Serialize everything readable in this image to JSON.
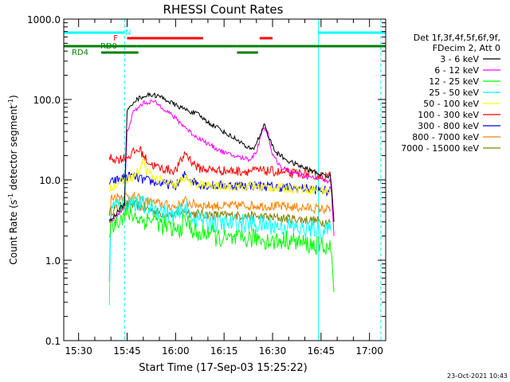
{
  "chart_data": {
    "type": "line",
    "title": "RHESSI Count Rates",
    "xlabel": "Start Time (17-Sep-03 15:25:22)",
    "ylabel_main": "Count Rate (s",
    "ylabel_sup1": "-1",
    "ylabel_mid": " detector segment",
    "ylabel_sup2": "-1",
    "ylabel_end": ")",
    "y_scale": "log",
    "ylim": [
      0.1,
      1000
    ],
    "xlim_minutes": [
      25.4,
      125
    ],
    "y_ticks": [
      {
        "value": 1000,
        "label": "1000.0"
      },
      {
        "value": 100,
        "label": "100.0"
      },
      {
        "value": 10,
        "label": "10.0"
      },
      {
        "value": 1,
        "label": "1.0"
      },
      {
        "value": 0.1,
        "label": "0.1"
      }
    ],
    "x_ticks": [
      {
        "value": 30,
        "label": "15:30"
      },
      {
        "value": 45,
        "label": "15:45"
      },
      {
        "value": 60,
        "label": "16:00"
      },
      {
        "value": 75,
        "label": "16:15"
      },
      {
        "value": 90,
        "label": "16:30"
      },
      {
        "value": 105,
        "label": "16:45"
      },
      {
        "value": 120,
        "label": "17:00"
      }
    ],
    "legend_header": [
      "Det 1f,3f,4f,5f,6f,9f,",
      "FDecim 2, Att 0"
    ],
    "legend_position": "right",
    "series": [
      {
        "name": "3 - 6 keV",
        "color": "#000000",
        "points": [
          [
            39.5,
            3
          ],
          [
            41,
            3.5
          ],
          [
            43,
            4.5
          ],
          [
            44.2,
            5
          ],
          [
            45,
            70
          ],
          [
            47,
            95
          ],
          [
            50,
            110
          ],
          [
            53,
            115
          ],
          [
            56,
            105
          ],
          [
            60,
            85
          ],
          [
            63,
            75
          ],
          [
            67,
            65
          ],
          [
            70,
            52
          ],
          [
            73,
            45
          ],
          [
            76,
            37
          ],
          [
            80,
            30
          ],
          [
            82,
            25
          ],
          [
            84,
            24
          ],
          [
            86,
            35
          ],
          [
            87.5,
            50
          ],
          [
            89,
            32
          ],
          [
            91,
            22
          ],
          [
            95,
            17
          ],
          [
            100,
            14
          ],
          [
            104,
            12
          ],
          [
            106,
            11.5
          ],
          [
            108,
            11
          ],
          [
            109,
            3
          ]
        ]
      },
      {
        "name": "6 - 12 keV",
        "color": "#ff00ff",
        "points": [
          [
            39.5,
            3
          ],
          [
            43,
            4
          ],
          [
            44.2,
            5
          ],
          [
            45,
            40
          ],
          [
            47,
            70
          ],
          [
            50,
            90
          ],
          [
            53,
            95
          ],
          [
            56,
            80
          ],
          [
            60,
            58
          ],
          [
            63,
            45
          ],
          [
            66,
            35
          ],
          [
            68,
            32
          ],
          [
            70,
            28
          ],
          [
            73,
            24
          ],
          [
            76,
            21
          ],
          [
            80,
            19
          ],
          [
            83,
            18
          ],
          [
            85,
            22
          ],
          [
            87,
            45
          ],
          [
            88.5,
            40
          ],
          [
            90,
            20
          ],
          [
            93,
            14
          ],
          [
            97,
            12
          ],
          [
            100,
            11
          ],
          [
            103,
            10.5
          ],
          [
            106,
            10
          ],
          [
            108,
            9.5
          ],
          [
            109,
            2
          ]
        ]
      },
      {
        "name": "12 - 25 keV",
        "color": "#00ff00",
        "points": [
          [
            39.5,
            2.5
          ],
          [
            42,
            3.2
          ],
          [
            45,
            3.8
          ],
          [
            47,
            3.6
          ],
          [
            50,
            3.1
          ],
          [
            53,
            3.3
          ],
          [
            56,
            2.7
          ],
          [
            59,
            2.4
          ],
          [
            61,
            2.3
          ],
          [
            63,
            3.2
          ],
          [
            65,
            2.5
          ],
          [
            67,
            2.0
          ],
          [
            70,
            2.3
          ],
          [
            73,
            1.9
          ],
          [
            76,
            1.8
          ],
          [
            80,
            1.8
          ],
          [
            85,
            1.9
          ],
          [
            90,
            1.7
          ],
          [
            95,
            1.8
          ],
          [
            100,
            1.6
          ],
          [
            104,
            1.5
          ],
          [
            106,
            1.5
          ],
          [
            108,
            1.4
          ],
          [
            109,
            0.4
          ]
        ]
      },
      {
        "name": "25 - 50 keV",
        "color": "#00ffff",
        "points": [
          [
            39.5,
            0.25
          ],
          [
            40,
            4.5
          ],
          [
            43,
            5
          ],
          [
            47,
            5.5
          ],
          [
            50,
            4.8
          ],
          [
            55,
            4.2
          ],
          [
            60,
            3.4
          ],
          [
            63,
            4.5
          ],
          [
            65,
            3.5
          ],
          [
            70,
            3.0
          ],
          [
            75,
            2.8
          ],
          [
            80,
            2.9
          ],
          [
            85,
            2.8
          ],
          [
            90,
            2.7
          ],
          [
            95,
            2.6
          ],
          [
            100,
            2.4
          ],
          [
            104,
            2.5
          ],
          [
            106,
            2.3
          ],
          [
            108,
            2.3
          ]
        ]
      },
      {
        "name": "50 - 100 keV",
        "color": "#ffff00",
        "points": [
          [
            39.5,
            8
          ],
          [
            42,
            9
          ],
          [
            45,
            10
          ],
          [
            47,
            11
          ],
          [
            49,
            13
          ],
          [
            50,
            18
          ],
          [
            51,
            13
          ],
          [
            53,
            11
          ],
          [
            56,
            9.5
          ],
          [
            60,
            8.5
          ],
          [
            63,
            11
          ],
          [
            65,
            9
          ],
          [
            70,
            8.5
          ],
          [
            75,
            8.3
          ],
          [
            80,
            8.2
          ],
          [
            85,
            8.2
          ],
          [
            90,
            8
          ],
          [
            95,
            7.8
          ],
          [
            100,
            7.8
          ],
          [
            104,
            7.5
          ],
          [
            106,
            7.3
          ],
          [
            108,
            7.2
          ]
        ]
      },
      {
        "name": "100 - 300 keV",
        "color": "#ff0000",
        "points": [
          [
            39.5,
            19
          ],
          [
            42,
            18
          ],
          [
            45,
            19
          ],
          [
            47,
            22
          ],
          [
            49,
            24
          ],
          [
            50,
            20
          ],
          [
            52,
            16
          ],
          [
            55,
            14
          ],
          [
            60,
            13
          ],
          [
            62,
            18
          ],
          [
            63,
            22
          ],
          [
            64.5,
            18
          ],
          [
            67,
            14
          ],
          [
            70,
            13.5
          ],
          [
            75,
            13
          ],
          [
            80,
            12.8
          ],
          [
            85,
            13
          ],
          [
            90,
            12.8
          ],
          [
            95,
            12
          ],
          [
            100,
            12
          ],
          [
            104,
            11.5
          ],
          [
            106,
            11
          ],
          [
            108,
            11
          ]
        ]
      },
      {
        "name": "300 - 800 keV",
        "color": "#0000ff",
        "points": [
          [
            39.5,
            9
          ],
          [
            42,
            10
          ],
          [
            45,
            11
          ],
          [
            47,
            11
          ],
          [
            50,
            10
          ],
          [
            53,
            9.5
          ],
          [
            56,
            9
          ],
          [
            60,
            8.5
          ],
          [
            62,
            10
          ],
          [
            63,
            12
          ],
          [
            64.5,
            10
          ],
          [
            67,
            9
          ],
          [
            70,
            8.5
          ],
          [
            75,
            8.5
          ],
          [
            80,
            8.5
          ],
          [
            85,
            8.5
          ],
          [
            90,
            8.2
          ],
          [
            95,
            8
          ],
          [
            100,
            7.8
          ],
          [
            104,
            7.5
          ],
          [
            106,
            7.3
          ],
          [
            108,
            7.2
          ]
        ]
      },
      {
        "name": "800 - 7000 keV",
        "color": "#ff8000",
        "points": [
          [
            39.5,
            0.5
          ],
          [
            40,
            6
          ],
          [
            42,
            6.2
          ],
          [
            45,
            6.3
          ],
          [
            48,
            6
          ],
          [
            50,
            5.6
          ],
          [
            53,
            5.2
          ],
          [
            56,
            5
          ],
          [
            60,
            4.6
          ],
          [
            63,
            5.5
          ],
          [
            65,
            5
          ],
          [
            70,
            4.8
          ],
          [
            75,
            4.7
          ],
          [
            80,
            4.8
          ],
          [
            85,
            4.8
          ],
          [
            90,
            4.7
          ],
          [
            95,
            4.6
          ],
          [
            100,
            4.5
          ],
          [
            104,
            4.4
          ],
          [
            106,
            4.3
          ],
          [
            108,
            4.3
          ]
        ]
      },
      {
        "name": "7000 - 15000 keV",
        "color": "#808000",
        "points": [
          [
            39.5,
            4
          ],
          [
            42,
            4.5
          ],
          [
            45,
            5
          ],
          [
            48,
            4.8
          ],
          [
            50,
            4.5
          ],
          [
            53,
            4.2
          ],
          [
            56,
            3.8
          ],
          [
            60,
            3.6
          ],
          [
            63,
            4.2
          ],
          [
            65,
            3.8
          ],
          [
            70,
            3.7
          ],
          [
            75,
            3.6
          ],
          [
            80,
            3.6
          ],
          [
            85,
            3.5
          ],
          [
            90,
            3.4
          ],
          [
            95,
            3.3
          ],
          [
            100,
            3.2
          ],
          [
            104,
            3.1
          ],
          [
            106,
            3.0
          ],
          [
            108,
            3.0
          ]
        ]
      }
    ],
    "flags": [
      {
        "label": "N",
        "label_color": "#00ffff",
        "color": "#00ffff",
        "segments": [
          [
            25.4,
            44.2
          ],
          [
            104.2,
            125
          ]
        ]
      },
      {
        "label": "F",
        "label_color": "#ff0000",
        "color": "#ff0000",
        "segments": [
          [
            45,
            68.5
          ],
          [
            86,
            90
          ]
        ]
      },
      {
        "label": "RD0",
        "label_color": "#008000",
        "color": "#008000",
        "segments": [
          [
            25.4,
            37
          ],
          [
            37,
            48
          ],
          [
            48,
            79
          ],
          [
            79,
            86
          ],
          [
            86,
            90
          ],
          [
            90,
            125
          ]
        ]
      },
      {
        "label": "RD4",
        "label_color": "#008000",
        "color": "#008000",
        "segments": [
          [
            37,
            48.5
          ],
          [
            79,
            85.5
          ]
        ]
      }
    ],
    "vertical_lines": [
      {
        "x": 25.4,
        "style": "solid",
        "color": "#00ffff"
      },
      {
        "x": 44.2,
        "style": "dashed",
        "color": "#00ffff"
      },
      {
        "x": 104.2,
        "style": "solid",
        "color": "#00ffff"
      },
      {
        "x": 123.5,
        "style": "dashed",
        "color": "#00ffff"
      }
    ]
  },
  "footer_timestamp": "23-Oct-2021 10:43"
}
